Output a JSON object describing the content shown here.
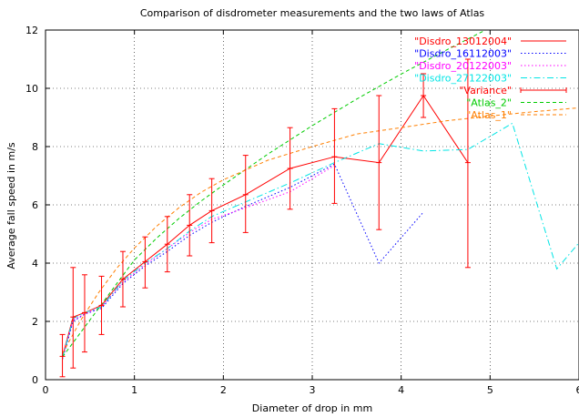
{
  "chart_data": {
    "type": "line",
    "title": "Comparison of disdrometer measurements and the two laws of Atlas",
    "xlabel": "Diameter of drop in mm",
    "ylabel": "Average fall speed in m/s",
    "xlim": [
      0,
      6
    ],
    "ylim": [
      0,
      12
    ],
    "xticks": [
      "0",
      "1",
      "2",
      "3",
      "4",
      "5",
      "6"
    ],
    "yticks": [
      "0",
      "2",
      "4",
      "6",
      "8",
      "10",
      "12"
    ],
    "grid": true,
    "legend_position": "top-right",
    "series": [
      {
        "name": "\"Disdro_13012004\"",
        "color": "#ff0000",
        "style": "solid",
        "x": [
          0.19,
          0.31,
          0.44,
          0.63,
          0.87,
          1.12,
          1.37,
          1.62,
          1.87,
          2.25,
          2.75,
          3.25,
          3.75,
          4.25,
          4.75
        ],
        "y": [
          0.8,
          2.15,
          2.3,
          2.55,
          3.45,
          4.05,
          4.65,
          5.3,
          5.8,
          6.35,
          7.25,
          7.65,
          7.45,
          9.75,
          7.45
        ]
      },
      {
        "name": "\"Disdro_16112003\"",
        "color": "#0000ff",
        "style": "dotted",
        "x": [
          0.19,
          0.31,
          0.44,
          0.63,
          0.87,
          1.12,
          1.37,
          1.62,
          1.87,
          2.25,
          2.75,
          3.25,
          3.75,
          4.25
        ],
        "y": [
          0.7,
          2.0,
          2.25,
          2.45,
          3.3,
          3.9,
          4.4,
          4.95,
          5.4,
          5.95,
          6.6,
          7.4,
          4.0,
          5.75
        ]
      },
      {
        "name": "\"Disdro_20122003\"",
        "color": "#ff00ff",
        "style": "dotted",
        "x": [
          0.19,
          0.31,
          0.44,
          0.63,
          0.87,
          1.12,
          1.37,
          1.62,
          1.87,
          2.25,
          2.75,
          3.25
        ],
        "y": [
          0.75,
          2.05,
          2.25,
          2.5,
          3.35,
          3.95,
          4.5,
          5.05,
          5.5,
          5.9,
          6.45,
          7.35
        ]
      },
      {
        "name": "\"Disdro_27122003\"",
        "color": "#00e5e5",
        "style": "dashdot",
        "x": [
          0.19,
          0.31,
          0.44,
          0.63,
          0.87,
          1.12,
          1.37,
          1.62,
          1.87,
          2.25,
          2.75,
          3.25,
          3.75,
          4.25,
          4.75,
          5.25,
          5.75,
          6.0
        ],
        "y": [
          0.75,
          2.1,
          2.3,
          2.5,
          3.4,
          4.0,
          4.5,
          5.1,
          5.6,
          6.1,
          6.75,
          7.45,
          8.1,
          7.85,
          7.9,
          8.8,
          3.8,
          4.7
        ]
      },
      {
        "name": "\"Atlas_2\"",
        "color": "#00cc00",
        "style": "dashed",
        "x": [
          0.19,
          0.4,
          0.6,
          0.8,
          1.0,
          1.25,
          1.5,
          1.75,
          2.0,
          2.5,
          3.0,
          3.5,
          4.0,
          4.5,
          5.0
        ],
        "y": [
          0.78,
          1.64,
          2.46,
          3.29,
          4.11,
          4.86,
          5.53,
          6.13,
          6.68,
          7.74,
          8.72,
          9.63,
          10.49,
          11.3,
          12.08
        ]
      },
      {
        "name": "\"Atlas_1\"",
        "color": "#ff7f00",
        "style": "dashed",
        "x": [
          0.19,
          0.4,
          0.6,
          0.8,
          1.0,
          1.25,
          1.5,
          1.75,
          2.0,
          2.5,
          3.0,
          3.5,
          4.0,
          4.5,
          5.0,
          5.5,
          6.0
        ],
        "y": [
          0.9,
          2.06,
          3.0,
          3.82,
          4.52,
          5.27,
          5.9,
          6.43,
          6.86,
          7.53,
          8.0,
          8.43,
          8.65,
          8.88,
          9.05,
          9.2,
          9.33
        ]
      }
    ],
    "errorbars": {
      "name": "\"Variance\"",
      "color": "#ff0000",
      "x": [
        0.19,
        0.31,
        0.44,
        0.63,
        0.87,
        1.12,
        1.37,
        1.62,
        1.87,
        2.25,
        2.75,
        3.25,
        3.75,
        4.25,
        4.75
      ],
      "y": [
        0.8,
        2.15,
        2.3,
        2.55,
        3.45,
        4.05,
        4.65,
        5.3,
        5.8,
        6.35,
        7.25,
        7.65,
        7.45,
        9.75,
        7.45
      ],
      "low": [
        0.1,
        0.4,
        0.95,
        1.55,
        2.5,
        3.15,
        3.7,
        4.25,
        4.7,
        5.05,
        5.85,
        6.05,
        5.15,
        9.0,
        3.85
      ],
      "high": [
        1.55,
        3.85,
        3.6,
        3.55,
        4.4,
        4.9,
        5.6,
        6.35,
        6.9,
        7.7,
        8.65,
        9.3,
        9.75,
        10.5,
        11.0
      ]
    },
    "legend_order": [
      "\"Disdro_13012004\"",
      "\"Disdro_16112003\"",
      "\"Disdro_20122003\"",
      "\"Disdro_27122003\"",
      "\"Variance\"",
      "\"Atlas_2\"",
      "\"Atlas_1\""
    ]
  }
}
